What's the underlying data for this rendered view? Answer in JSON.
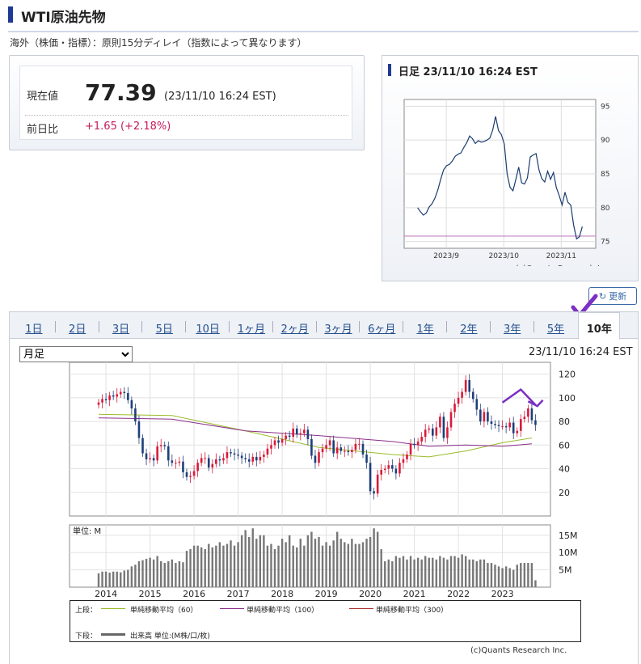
{
  "page": {
    "title": "WTI原油先物",
    "delay_note": "海外（株価・指標）：原則15分ディレイ（指数によって異なります）"
  },
  "quote": {
    "price_label": "現在値",
    "price": "77.39",
    "time": "(23/11/10 16:24 EST)",
    "change_label": "前日比",
    "change": "+1.65 (+2.18%)"
  },
  "daily": {
    "title": "日足 23/11/10 16:24 EST",
    "credit": "(c)Quants Research Inc."
  },
  "controls": {
    "refresh_label": "更新",
    "tabs": [
      "1日",
      "2日",
      "3日",
      "5日",
      "10日",
      "1ヶ月",
      "2ヶ月",
      "3ヶ月",
      "6ヶ月",
      "1年",
      "2年",
      "3年",
      "5年",
      "10年"
    ],
    "active_tab": "10年",
    "period_selected": "月足",
    "time": "23/11/10 16:24 EST"
  },
  "legend": {
    "upper_label": "上段：",
    "lower_label": "下段：",
    "ma60": "単純移動平均（60）",
    "ma100": "単純移動平均（100）",
    "ma300": "単純移動平均（300）",
    "volume": "出来高 単位:(M株/口/枚)",
    "ma60_color": "#9bbb2a",
    "ma100_color": "#8b2f8b",
    "ma300_color": "#b03030",
    "volume_color": "#666666"
  },
  "main_credit": "(c)Quants Research Inc.",
  "chart_data": [
    {
      "type": "line",
      "name_label": "日足",
      "x_ticks": [
        "2023/9",
        "2023/10",
        "2023/11"
      ],
      "y_ticks": [
        75,
        80,
        85,
        90,
        95
      ],
      "ylim": [
        74,
        96
      ],
      "reference_level": 75.8,
      "reference_color": "#c080c0",
      "line_color": "#1a3c6e",
      "values": [
        80.0,
        79.4,
        78.9,
        79.2,
        80.1,
        80.6,
        81.4,
        82.6,
        84.2,
        85.6,
        86.2,
        86.4,
        86.9,
        87.6,
        87.9,
        88.1,
        88.9,
        89.6,
        90.6,
        90.2,
        89.5,
        89.9,
        89.7,
        89.8,
        90.0,
        90.3,
        91.5,
        93.5,
        91.4,
        90.8,
        89.4,
        85.0,
        83.0,
        82.5,
        84.2,
        86.0,
        83.7,
        83.5,
        84.4,
        87.5,
        87.8,
        88.0,
        85.6,
        84.3,
        83.8,
        85.4,
        84.2,
        85.2,
        83.0,
        81.8,
        80.4,
        82.3,
        80.8,
        80.4,
        77.4,
        75.4,
        75.7,
        77.2
      ],
      "grid": true
    },
    {
      "type": "candlestick",
      "name_label": "月足",
      "x_tick_labels": [
        "2014",
        "2015",
        "2016",
        "2017",
        "2018",
        "2019",
        "2020",
        "2021",
        "2022",
        "2023"
      ],
      "y_ticks": [
        20,
        40,
        60,
        80,
        100,
        120
      ],
      "ylim": [
        0,
        130
      ],
      "up_color": "#d81b3a",
      "down_color": "#1f3f7a",
      "start": "2013-11",
      "closes": [
        96,
        99,
        98,
        102,
        101,
        103,
        105,
        104,
        98,
        91,
        80,
        66,
        53,
        48,
        49,
        47,
        59,
        60,
        59,
        47,
        45,
        45,
        46,
        37,
        33,
        34,
        38,
        45,
        49,
        49,
        41,
        44,
        48,
        47,
        49,
        54,
        53,
        52,
        51,
        49,
        48,
        46,
        50,
        47,
        50,
        52,
        57,
        60,
        64,
        62,
        65,
        68,
        67,
        74,
        69,
        70,
        73,
        65,
        51,
        45,
        54,
        57,
        60,
        64,
        53,
        58,
        55,
        55,
        54,
        56,
        61,
        61,
        52,
        45,
        21,
        19,
        35,
        39,
        40,
        43,
        40,
        36,
        45,
        48,
        52,
        61,
        60,
        63,
        67,
        73,
        74,
        68,
        75,
        84,
        66,
        75,
        88,
        95,
        100,
        105,
        115,
        105,
        99,
        90,
        80,
        88,
        80,
        78,
        77,
        76,
        76,
        75,
        79,
        70,
        72,
        82,
        84,
        91,
        81,
        77
      ],
      "moving_averages": [
        {
          "name": "単純移動平均（60）",
          "color": "#9bbb2a",
          "points": [
            [
              0,
              86
            ],
            [
              20,
              85
            ],
            [
              40,
              72
            ],
            [
              60,
              58
            ],
            [
              80,
              52
            ],
            [
              90,
              50
            ],
            [
              100,
              55
            ],
            [
              110,
              62
            ],
            [
              118,
              66
            ]
          ]
        },
        {
          "name": "単純移動平均（100）",
          "color": "#8b2f8b",
          "points": [
            [
              0,
              83
            ],
            [
              20,
              82
            ],
            [
              40,
              72
            ],
            [
              60,
              68
            ],
            [
              80,
              63
            ],
            [
              90,
              59
            ],
            [
              100,
              60
            ],
            [
              110,
              59
            ],
            [
              118,
              61
            ]
          ]
        }
      ]
    },
    {
      "type": "bar",
      "name_label": "出来高",
      "unit_label": "単位: M",
      "y_ticks": [
        "5M",
        "10M",
        "15M"
      ],
      "y_tick_values": [
        5,
        10,
        15
      ],
      "ylim": [
        0,
        18
      ],
      "values": [
        4,
        4.5,
        4.5,
        4.2,
        4.5,
        4.5,
        4.3,
        4.8,
        5,
        6,
        6.5,
        7.5,
        7.8,
        8.2,
        8.5,
        8,
        9,
        7.5,
        7,
        7.5,
        8,
        7,
        7.5,
        7.2,
        10.5,
        11,
        12,
        12,
        11.5,
        11,
        12.5,
        11.5,
        12,
        13,
        12,
        12.5,
        13.5,
        12,
        13,
        15,
        16.5,
        14.5,
        17,
        14,
        15,
        15,
        12,
        12.5,
        11,
        12,
        14,
        13,
        15,
        12,
        11.5,
        14,
        12,
        15,
        16,
        14,
        14.5,
        12,
        13,
        12,
        13.5,
        16,
        14,
        13,
        12.5,
        14,
        12.5,
        12.5,
        13,
        14,
        14.5,
        17,
        16,
        11,
        7.5,
        8,
        7.5,
        9,
        8.5,
        9,
        8,
        9,
        8,
        8.5,
        8,
        9,
        8.5,
        8.5,
        8,
        9,
        8.5,
        8,
        9,
        9,
        8.5,
        9.5,
        9,
        8,
        8,
        7.5,
        8,
        8,
        7,
        7,
        6.5,
        6,
        5.5,
        6,
        5.5,
        5,
        6.5,
        7,
        7,
        7,
        7,
        2
      ]
    }
  ]
}
